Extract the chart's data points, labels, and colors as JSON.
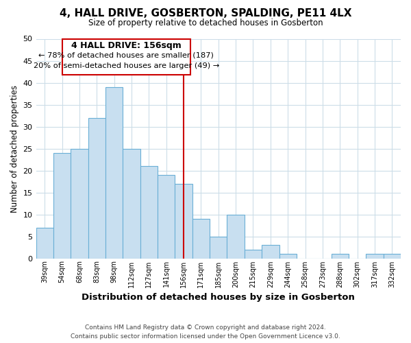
{
  "title": "4, HALL DRIVE, GOSBERTON, SPALDING, PE11 4LX",
  "subtitle": "Size of property relative to detached houses in Gosberton",
  "xlabel": "Distribution of detached houses by size in Gosberton",
  "ylabel": "Number of detached properties",
  "categories": [
    "39sqm",
    "54sqm",
    "68sqm",
    "83sqm",
    "98sqm",
    "112sqm",
    "127sqm",
    "141sqm",
    "156sqm",
    "171sqm",
    "185sqm",
    "200sqm",
    "215sqm",
    "229sqm",
    "244sqm",
    "258sqm",
    "273sqm",
    "288sqm",
    "302sqm",
    "317sqm",
    "332sqm"
  ],
  "values": [
    7,
    24,
    25,
    32,
    39,
    25,
    21,
    19,
    17,
    9,
    5,
    10,
    2,
    3,
    1,
    0,
    0,
    1,
    0,
    1,
    1
  ],
  "bar_color": "#c8dff0",
  "bar_edge_color": "#6aafd6",
  "vline_x_index": 8,
  "vline_color": "#cc0000",
  "annotation_title": "4 HALL DRIVE: 156sqm",
  "annotation_line1": "← 78% of detached houses are smaller (187)",
  "annotation_line2": "20% of semi-detached houses are larger (49) →",
  "annotation_box_edge_color": "#cc0000",
  "ylim": [
    0,
    50
  ],
  "yticks": [
    0,
    5,
    10,
    15,
    20,
    25,
    30,
    35,
    40,
    45,
    50
  ],
  "footer_line1": "Contains HM Land Registry data © Crown copyright and database right 2024.",
  "footer_line2": "Contains public sector information licensed under the Open Government Licence v3.0.",
  "background_color": "#ffffff",
  "grid_color": "#ccdde8"
}
